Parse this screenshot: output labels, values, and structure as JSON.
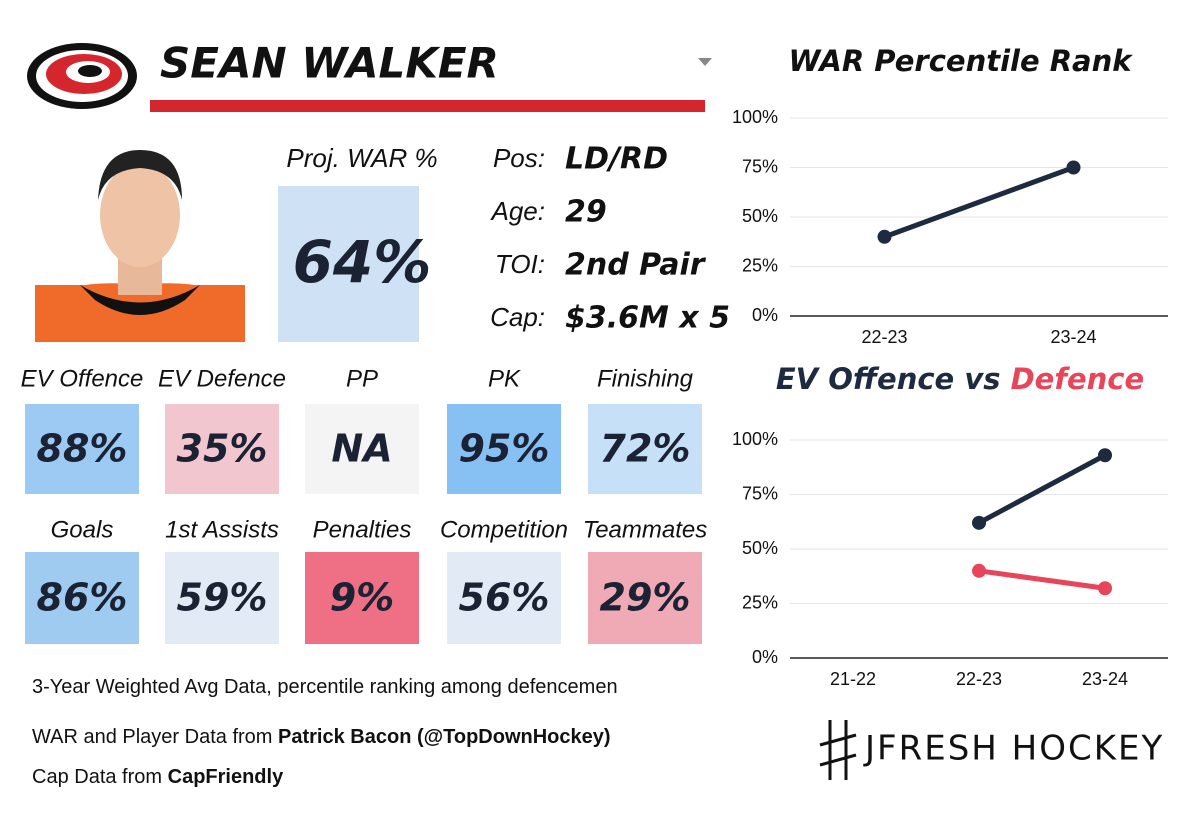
{
  "header": {
    "name": "SEAN WALKER"
  },
  "proj_war": {
    "label": "Proj. WAR %",
    "value": "64%",
    "color": "#cfe2f5"
  },
  "info": [
    {
      "label": "Pos:",
      "value": "LD/RD"
    },
    {
      "label": "Age:",
      "value": "29"
    },
    {
      "label": "TOI:",
      "value": "2nd Pair"
    },
    {
      "label": "Cap:",
      "value": "$3.6M x 5"
    }
  ],
  "tiles": [
    {
      "label": "EV Offence",
      "value": "88%",
      "color": "#9ccaf3"
    },
    {
      "label": "EV Defence",
      "value": "35%",
      "color": "#f2c6cf"
    },
    {
      "label": "PP",
      "value": "NA",
      "color": "#f4f4f4"
    },
    {
      "label": "PK",
      "value": "95%",
      "color": "#87c1f4"
    },
    {
      "label": "Finishing",
      "value": "72%",
      "color": "#c6e0f7"
    },
    {
      "label": "Goals",
      "value": "86%",
      "color": "#a0cbf1"
    },
    {
      "label": "1st Assists",
      "value": "59%",
      "color": "#e2ebf5"
    },
    {
      "label": "Penalties",
      "value": "9%",
      "color": "#ef6f84"
    },
    {
      "label": "Competition",
      "value": "56%",
      "color": "#e2ebf5"
    },
    {
      "label": "Teammates",
      "value": "29%",
      "color": "#f0aab5"
    }
  ],
  "footer": {
    "note": "3-Year Weighted Avg Data, percentile ranking among defencemen",
    "war_source": {
      "text": "WAR and Player Data from",
      "name": "Patrick Bacon (@TopDownHockey)"
    },
    "cap_source": {
      "text": "Cap Data from",
      "name": "CapFriendly"
    }
  },
  "brand": "JFRESH HOCKEY",
  "chart_data": [
    {
      "type": "line",
      "title": "WAR Percentile Rank",
      "categories": [
        "22-23",
        "23-24"
      ],
      "series": [
        {
          "color": "#1e2a3f",
          "values": [
            40,
            75
          ]
        }
      ],
      "ylim": [
        0,
        100
      ],
      "yticks": [
        {
          "value": 0,
          "label": "0%"
        },
        {
          "value": 25,
          "label": "25%"
        },
        {
          "value": 50,
          "label": "50%"
        },
        {
          "value": 75,
          "label": "75%"
        },
        {
          "value": 100,
          "label": "100%"
        }
      ],
      "grid": true
    },
    {
      "type": "line",
      "title_parts": [
        {
          "text": "EV Offence",
          "color": "#1e2a3f"
        },
        {
          "text": "vs",
          "color": "#1e2a3f"
        },
        {
          "text": "Defence",
          "color": "#e8445a"
        }
      ],
      "categories": [
        "21-22",
        "22-23",
        "23-24"
      ],
      "series": [
        {
          "color": "#1e2a3f",
          "values": [
            null,
            62,
            93
          ]
        },
        {
          "color": "#e8445a",
          "values": [
            null,
            40,
            32
          ]
        }
      ],
      "ylim": [
        0,
        100
      ],
      "yticks": [
        {
          "value": 0,
          "label": "0%"
        },
        {
          "value": 25,
          "label": "25%"
        },
        {
          "value": 50,
          "label": "50%"
        },
        {
          "value": 75,
          "label": "75%"
        },
        {
          "value": 100,
          "label": "100%"
        }
      ],
      "grid": true
    }
  ]
}
